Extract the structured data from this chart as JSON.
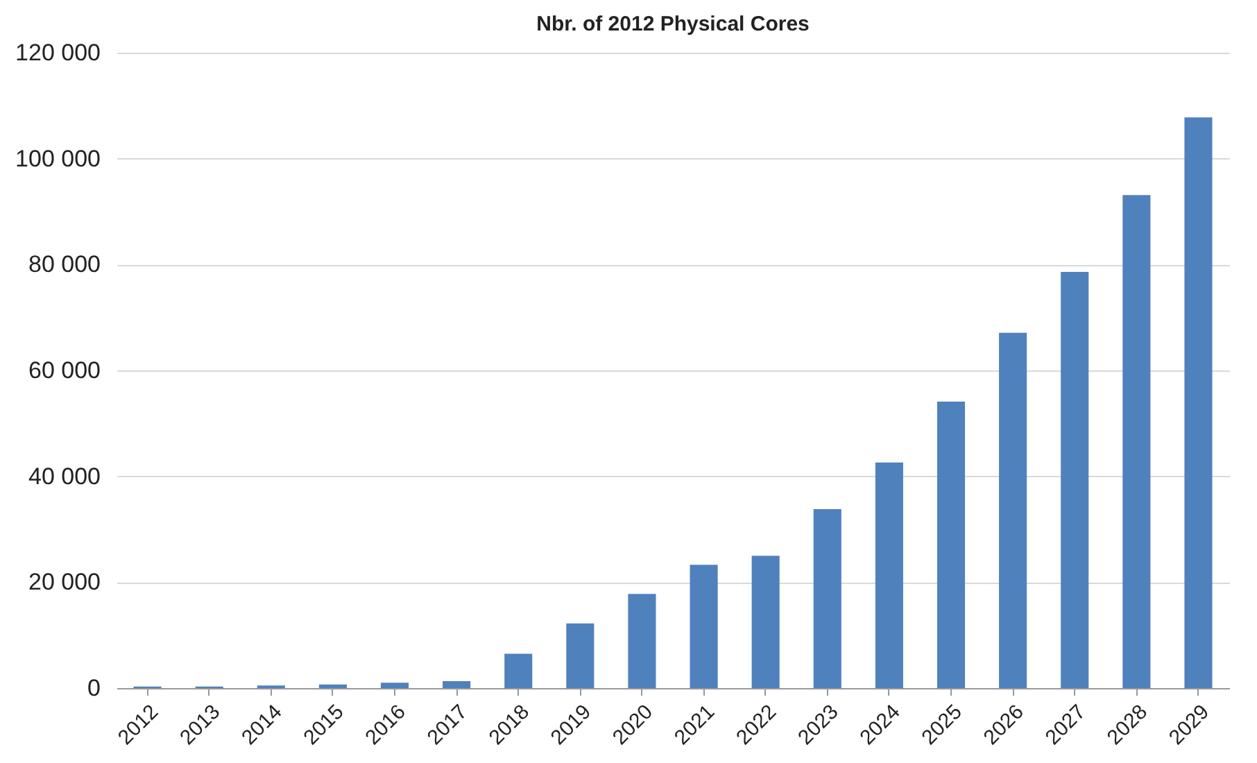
{
  "chart_data": {
    "type": "bar",
    "title": "Nbr. of 2012 Physical Cores",
    "categories": [
      "2012",
      "2013",
      "2014",
      "2015",
      "2016",
      "2017",
      "2018",
      "2019",
      "2020",
      "2021",
      "2022",
      "2023",
      "2024",
      "2025",
      "2026",
      "2027",
      "2028",
      "2029"
    ],
    "values": [
      300,
      300,
      500,
      700,
      1000,
      1300,
      6500,
      12200,
      17800,
      23300,
      25000,
      33800,
      42600,
      54100,
      67100,
      78600,
      93100,
      107800
    ],
    "color": "#4f81bd",
    "ylim": [
      0,
      120000
    ],
    "yticks": [
      {
        "value": 0,
        "label": "0"
      },
      {
        "value": 20000,
        "label": "20 000"
      },
      {
        "value": 40000,
        "label": "40 000"
      },
      {
        "value": 60000,
        "label": "60 000"
      },
      {
        "value": 80000,
        "label": "80 000"
      },
      {
        "value": 100000,
        "label": "100 000"
      },
      {
        "value": 120000,
        "label": "120 000"
      }
    ],
    "grid": "y"
  }
}
